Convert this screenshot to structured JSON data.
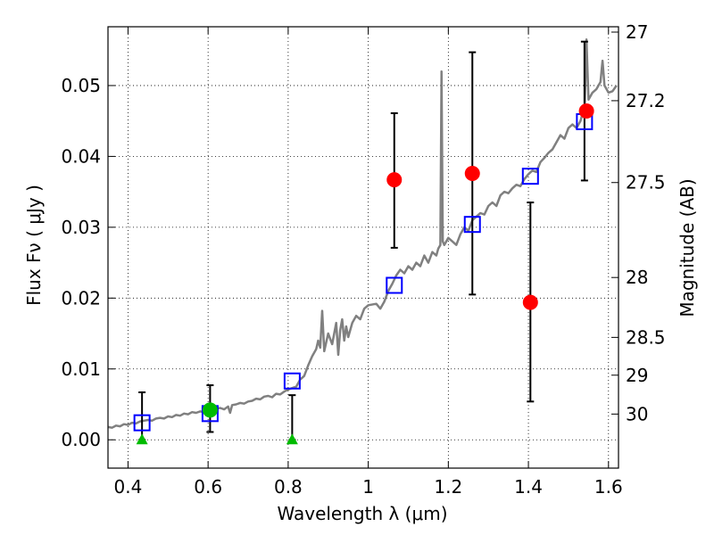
{
  "chart_data": {
    "type": "scatter",
    "xlabel": "Wavelength  λ (μm)",
    "ylabel": "Flux  Fν  ( μJy )",
    "y2label": "Magnitude (AB)",
    "xlim": [
      0.35,
      1.625
    ],
    "ylim": [
      -0.004,
      0.0583
    ],
    "grid": true,
    "x_ticks": [
      {
        "value": 0.4,
        "label": "0.4"
      },
      {
        "value": 0.6,
        "label": "0.6"
      },
      {
        "value": 0.8,
        "label": "0.8"
      },
      {
        "value": 1.0,
        "label": "1"
      },
      {
        "value": 1.2,
        "label": "1.2"
      },
      {
        "value": 1.4,
        "label": "1.4"
      },
      {
        "value": 1.6,
        "label": "1.6"
      }
    ],
    "y_ticks": [
      {
        "value": 0.0,
        "label": "0.00"
      },
      {
        "value": 0.01,
        "label": "0.01"
      },
      {
        "value": 0.02,
        "label": "0.02"
      },
      {
        "value": 0.03,
        "label": "0.03"
      },
      {
        "value": 0.04,
        "label": "0.04"
      },
      {
        "value": 0.05,
        "label": "0.05"
      }
    ],
    "magnitude_ticks": [
      {
        "value": 27.0,
        "label": "27"
      },
      {
        "value": 27.2,
        "label": "27.2"
      },
      {
        "value": 27.5,
        "label": "27.5"
      },
      {
        "value": 28.0,
        "label": "28"
      },
      {
        "value": 28.5,
        "label": "28.5"
      },
      {
        "value": 29.0,
        "label": "29"
      },
      {
        "value": 30.0,
        "label": "30"
      }
    ],
    "series": [
      {
        "kind": "line",
        "color": "#808080",
        "points": [
          [
            0.35,
            0.0018
          ],
          [
            0.36,
            0.0017
          ],
          [
            0.37,
            0.002
          ],
          [
            0.38,
            0.0019
          ],
          [
            0.39,
            0.0022
          ],
          [
            0.4,
            0.0021
          ],
          [
            0.41,
            0.0024
          ],
          [
            0.42,
            0.0023
          ],
          [
            0.43,
            0.0026
          ],
          [
            0.44,
            0.0027
          ],
          [
            0.45,
            0.0028
          ],
          [
            0.46,
            0.0027
          ],
          [
            0.47,
            0.003
          ],
          [
            0.48,
            0.0031
          ],
          [
            0.49,
            0.003
          ],
          [
            0.5,
            0.0033
          ],
          [
            0.51,
            0.0032
          ],
          [
            0.52,
            0.0035
          ],
          [
            0.53,
            0.0034
          ],
          [
            0.54,
            0.0037
          ],
          [
            0.55,
            0.0036
          ],
          [
            0.56,
            0.0039
          ],
          [
            0.57,
            0.0038
          ],
          [
            0.58,
            0.004
          ],
          [
            0.59,
            0.0039
          ],
          [
            0.6,
            0.0042
          ],
          [
            0.61,
            0.004
          ],
          [
            0.62,
            0.0044
          ],
          [
            0.63,
            0.0045
          ],
          [
            0.64,
            0.0043
          ],
          [
            0.65,
            0.0047
          ],
          [
            0.655,
            0.0038
          ],
          [
            0.66,
            0.0049
          ],
          [
            0.67,
            0.005
          ],
          [
            0.68,
            0.0052
          ],
          [
            0.69,
            0.0051
          ],
          [
            0.7,
            0.0054
          ],
          [
            0.71,
            0.0055
          ],
          [
            0.72,
            0.0058
          ],
          [
            0.73,
            0.0057
          ],
          [
            0.74,
            0.0061
          ],
          [
            0.75,
            0.0062
          ],
          [
            0.76,
            0.006
          ],
          [
            0.77,
            0.0065
          ],
          [
            0.78,
            0.0064
          ],
          [
            0.79,
            0.0068
          ],
          [
            0.8,
            0.0071
          ],
          [
            0.81,
            0.0073
          ],
          [
            0.82,
            0.0075
          ],
          [
            0.83,
            0.0085
          ],
          [
            0.84,
            0.009
          ],
          [
            0.85,
            0.0105
          ],
          [
            0.86,
            0.0118
          ],
          [
            0.87,
            0.0128
          ],
          [
            0.875,
            0.014
          ],
          [
            0.88,
            0.013
          ],
          [
            0.885,
            0.0182
          ],
          [
            0.89,
            0.0125
          ],
          [
            0.9,
            0.015
          ],
          [
            0.91,
            0.0135
          ],
          [
            0.92,
            0.0165
          ],
          [
            0.925,
            0.012
          ],
          [
            0.93,
            0.0155
          ],
          [
            0.935,
            0.017
          ],
          [
            0.94,
            0.014
          ],
          [
            0.945,
            0.016
          ],
          [
            0.95,
            0.0145
          ],
          [
            0.96,
            0.0165
          ],
          [
            0.97,
            0.0175
          ],
          [
            0.98,
            0.017
          ],
          [
            0.99,
            0.0185
          ],
          [
            1.0,
            0.019
          ],
          [
            1.02,
            0.0192
          ],
          [
            1.03,
            0.0185
          ],
          [
            1.04,
            0.0195
          ],
          [
            1.05,
            0.021
          ],
          [
            1.06,
            0.022
          ],
          [
            1.07,
            0.0232
          ],
          [
            1.08,
            0.024
          ],
          [
            1.09,
            0.0235
          ],
          [
            1.1,
            0.0245
          ],
          [
            1.11,
            0.024
          ],
          [
            1.12,
            0.025
          ],
          [
            1.13,
            0.0245
          ],
          [
            1.14,
            0.026
          ],
          [
            1.15,
            0.025
          ],
          [
            1.16,
            0.0265
          ],
          [
            1.17,
            0.026
          ],
          [
            1.175,
            0.027
          ],
          [
            1.18,
            0.0275
          ],
          [
            1.183,
            0.052
          ],
          [
            1.186,
            0.028
          ],
          [
            1.19,
            0.0275
          ],
          [
            1.2,
            0.0285
          ],
          [
            1.21,
            0.028
          ],
          [
            1.22,
            0.0275
          ],
          [
            1.23,
            0.029
          ],
          [
            1.24,
            0.03
          ],
          [
            1.25,
            0.0295
          ],
          [
            1.26,
            0.031
          ],
          [
            1.27,
            0.0315
          ],
          [
            1.28,
            0.032
          ],
          [
            1.29,
            0.0318
          ],
          [
            1.3,
            0.033
          ],
          [
            1.31,
            0.0335
          ],
          [
            1.32,
            0.033
          ],
          [
            1.33,
            0.0345
          ],
          [
            1.34,
            0.035
          ],
          [
            1.35,
            0.0348
          ],
          [
            1.36,
            0.0355
          ],
          [
            1.37,
            0.036
          ],
          [
            1.38,
            0.0358
          ],
          [
            1.39,
            0.0368
          ],
          [
            1.4,
            0.0375
          ],
          [
            1.41,
            0.038
          ],
          [
            1.42,
            0.0378
          ],
          [
            1.43,
            0.0392
          ],
          [
            1.44,
            0.0398
          ],
          [
            1.45,
            0.0405
          ],
          [
            1.46,
            0.041
          ],
          [
            1.47,
            0.042
          ],
          [
            1.48,
            0.043
          ],
          [
            1.49,
            0.0425
          ],
          [
            1.5,
            0.044
          ],
          [
            1.51,
            0.0445
          ],
          [
            1.52,
            0.044
          ],
          [
            1.53,
            0.045
          ],
          [
            1.535,
            0.046
          ],
          [
            1.54,
            0.0455
          ],
          [
            1.545,
            0.0565
          ],
          [
            1.55,
            0.048
          ],
          [
            1.56,
            0.049
          ],
          [
            1.57,
            0.0495
          ],
          [
            1.58,
            0.0505
          ],
          [
            1.585,
            0.0535
          ],
          [
            1.59,
            0.05
          ],
          [
            1.6,
            0.049
          ],
          [
            1.61,
            0.0492
          ],
          [
            1.62,
            0.05
          ]
        ]
      },
      {
        "kind": "open-square",
        "color": "#0000ff",
        "points": [
          [
            0.435,
            0.0024
          ],
          [
            0.605,
            0.0037
          ],
          [
            0.81,
            0.0083
          ],
          [
            1.065,
            0.0218
          ],
          [
            1.26,
            0.0304
          ],
          [
            1.405,
            0.0372
          ],
          [
            1.54,
            0.0449
          ]
        ]
      },
      {
        "kind": "errorbar",
        "color": "#000000",
        "bars": [
          [
            0.435,
            0.0,
            0.0067
          ],
          [
            0.605,
            0.0011,
            0.0077
          ],
          [
            0.81,
            0.0,
            0.0063
          ],
          [
            1.065,
            0.0271,
            0.0461
          ],
          [
            1.26,
            0.0205,
            0.0547
          ],
          [
            1.405,
            0.0054,
            0.0335
          ],
          [
            1.54,
            0.0366,
            0.0562
          ]
        ]
      },
      {
        "kind": "filled-circle",
        "color": "#ff0000",
        "points": [
          [
            1.065,
            0.0367
          ],
          [
            1.26,
            0.0376
          ],
          [
            1.405,
            0.0194
          ],
          [
            1.545,
            0.0464
          ]
        ]
      },
      {
        "kind": "filled-circle",
        "color": "#00bb00",
        "points": [
          [
            0.605,
            0.0042
          ]
        ]
      },
      {
        "kind": "triangle",
        "color": "#00bb00",
        "points": [
          [
            0.435,
            0.0
          ],
          [
            0.81,
            0.0
          ]
        ]
      }
    ]
  }
}
